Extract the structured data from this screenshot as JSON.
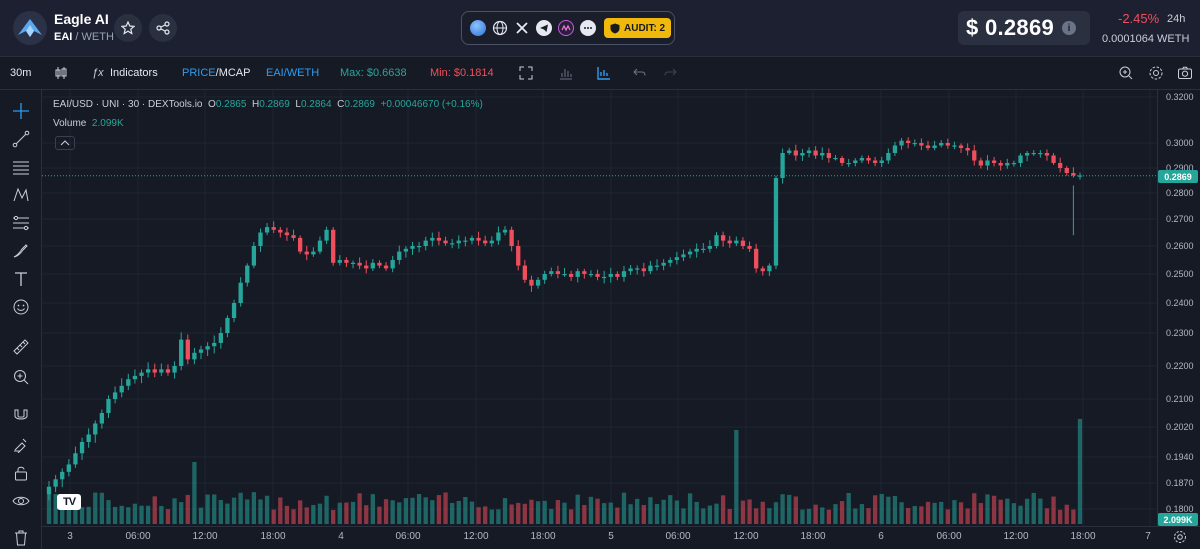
{
  "header": {
    "token_name": "Eagle AI",
    "base_symbol": "EAI",
    "quote_symbol": "/ WETH",
    "audit_label": "AUDIT: 2",
    "price_usd": "$ 0.2869",
    "info_label": "i",
    "change_pct": "-2.45%",
    "change_period": "24h",
    "price_weth": "0.0001064  WETH",
    "links": [
      "chain-icon",
      "website-icon",
      "x-icon",
      "telegram-icon",
      "exchange-icon",
      "more-icon"
    ],
    "colors": {
      "accent": "#f0b90b",
      "negative": "#ef4f5d",
      "positive": "#26a69a"
    }
  },
  "toolbar": {
    "interval": "30m",
    "indicators_label": "Indicators",
    "price_label": "PRICE",
    "mcap_label": "MCAP",
    "pair_label": "EAI/WETH",
    "max_label": "Max: $0.6638",
    "min_label": "Min: $0.1814"
  },
  "legend": {
    "symbol": "EAI/USD · UNI · 30 · DEXTools.io",
    "o_key": "O",
    "o_val": "0.2865",
    "h_key": "H",
    "h_val": "0.2869",
    "l_key": "L",
    "l_val": "0.2864",
    "c_key": "C",
    "c_val": "0.2869",
    "change": "+0.00046670 (+0.16%)",
    "volume_label": "Volume",
    "volume_val": "2.099K"
  },
  "chart_data": {
    "type": "candlestick",
    "yaxis_ticks": [
      "0.3200",
      "0.3000",
      "0.2900",
      "0.2800",
      "0.2700",
      "0.2600",
      "0.2500",
      "0.2400",
      "0.2300",
      "0.2200",
      "0.2100",
      "0.2020",
      "0.1940",
      "0.1870",
      "0.1800"
    ],
    "xaxis_ticks": [
      "3",
      "06:00",
      "12:00",
      "18:00",
      "4",
      "06:00",
      "12:00",
      "18:00",
      "5",
      "06:00",
      "12:00",
      "18:00",
      "6",
      "06:00",
      "12:00",
      "18:00",
      "7"
    ],
    "last_price_label": "0.2869",
    "last_volume_label": "2.099K",
    "closes": [
      0.186,
      0.188,
      0.19,
      0.192,
      0.195,
      0.198,
      0.2,
      0.203,
      0.206,
      0.21,
      0.212,
      0.214,
      0.216,
      0.217,
      0.218,
      0.219,
      0.218,
      0.219,
      0.218,
      0.22,
      0.228,
      0.222,
      0.224,
      0.225,
      0.226,
      0.227,
      0.23,
      0.235,
      0.24,
      0.247,
      0.253,
      0.26,
      0.265,
      0.267,
      0.266,
      0.265,
      0.264,
      0.263,
      0.258,
      0.257,
      0.258,
      0.262,
      0.266,
      0.254,
      0.255,
      0.254,
      0.254,
      0.253,
      0.252,
      0.254,
      0.253,
      0.252,
      0.255,
      0.258,
      0.259,
      0.26,
      0.26,
      0.262,
      0.263,
      0.262,
      0.261,
      0.261,
      0.262,
      0.262,
      0.263,
      0.262,
      0.261,
      0.262,
      0.265,
      0.266,
      0.26,
      0.253,
      0.248,
      0.246,
      0.248,
      0.25,
      0.251,
      0.25,
      0.25,
      0.249,
      0.251,
      0.25,
      0.25,
      0.249,
      0.249,
      0.25,
      0.249,
      0.251,
      0.252,
      0.252,
      0.251,
      0.253,
      0.253,
      0.254,
      0.255,
      0.256,
      0.257,
      0.258,
      0.259,
      0.259,
      0.26,
      0.264,
      0.262,
      0.261,
      0.262,
      0.26,
      0.259,
      0.252,
      0.251,
      0.253,
      0.286,
      0.296,
      0.297,
      0.295,
      0.296,
      0.297,
      0.295,
      0.296,
      0.294,
      0.294,
      0.292,
      0.292,
      0.293,
      0.294,
      0.293,
      0.292,
      0.293,
      0.296,
      0.299,
      0.301,
      0.3,
      0.3,
      0.299,
      0.298,
      0.299,
      0.3,
      0.299,
      0.299,
      0.298,
      0.297,
      0.293,
      0.291,
      0.293,
      0.292,
      0.291,
      0.292,
      0.292,
      0.295,
      0.296,
      0.296,
      0.296,
      0.295,
      0.292,
      0.29,
      0.288,
      0.287,
      0.287
    ]
  }
}
